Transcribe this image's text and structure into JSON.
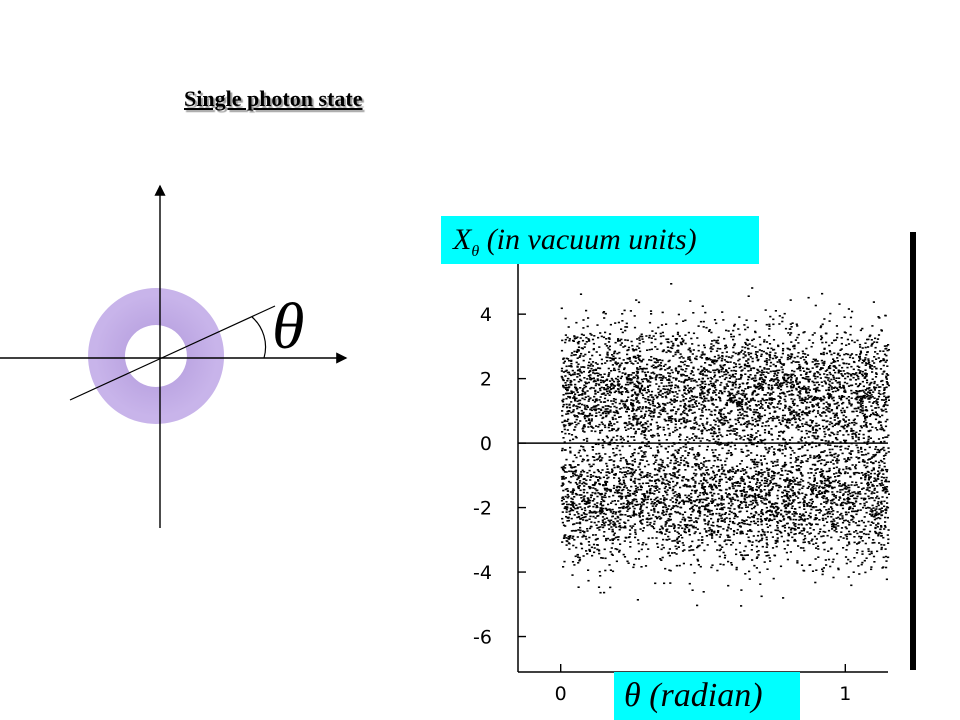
{
  "title": "Single photon state",
  "phasor": {
    "angle_symbol": "θ",
    "ring_color": "#c8b4ea",
    "ring_shade_color": "#a68cd4"
  },
  "chart_data": {
    "type": "scatter",
    "xlabel": "θ (radian)",
    "ylabel": "X_θ (in vacuum units)",
    "ylabel_main": "X",
    "ylabel_sub": "θ",
    "ylabel_rest": " (in vacuum units)",
    "xlim": [
      -0.15,
      1.15
    ],
    "ylim": [
      -7.1,
      6.3
    ],
    "x_ticks": [
      {
        "value": 0,
        "label": "0"
      },
      {
        "value": 1,
        "label": "1"
      }
    ],
    "y_ticks": [
      {
        "value": 4,
        "label": "4"
      },
      {
        "value": 2,
        "label": "2"
      },
      {
        "value": 0,
        "label": "0"
      },
      {
        "value": -2,
        "label": "-2"
      },
      {
        "value": -4,
        "label": "-4"
      },
      {
        "value": -6,
        "label": "-6"
      }
    ],
    "zero_line": 0,
    "point_distribution": {
      "x_range": [
        0,
        1.15
      ],
      "radial_peak": 1.7,
      "count": 7000
    },
    "colors": {
      "points": "#000000",
      "label_background": "#00ffff"
    }
  }
}
